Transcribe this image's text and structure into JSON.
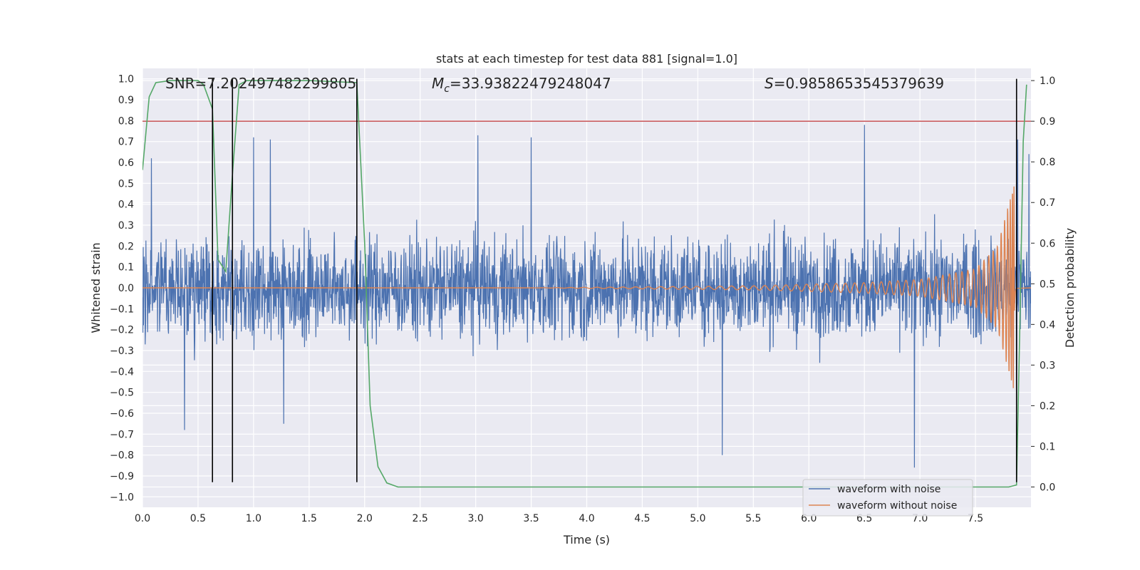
{
  "chart_data": {
    "type": "line",
    "title": "stats at each timestep for test data 881 [signal=1.0]",
    "xlabel": "Time (s)",
    "ylabel": "Whitened strain",
    "ylabel_right": "Detection probability",
    "xlim": [
      0.0,
      8.0
    ],
    "ylim": [
      -1.05,
      1.05
    ],
    "ylim_right": [
      -0.05,
      1.03
    ],
    "x_ticks": [
      "0.0",
      "0.5",
      "1.0",
      "1.5",
      "2.0",
      "2.5",
      "3.0",
      "3.5",
      "4.0",
      "4.5",
      "5.0",
      "5.5",
      "6.0",
      "6.5",
      "7.0",
      "7.5"
    ],
    "y_ticks": [
      "1.0",
      "0.9",
      "0.8",
      "0.7",
      "0.6",
      "0.5",
      "0.4",
      "0.3",
      "0.2",
      "0.1",
      "0.0",
      "−0.1",
      "−0.2",
      "−0.3",
      "−0.4",
      "−0.5",
      "−0.6",
      "−0.7",
      "−0.8",
      "−0.9",
      "−1.0"
    ],
    "y_right_ticks": [
      "1.0",
      "0.9",
      "0.8",
      "0.7",
      "0.6",
      "0.5",
      "0.4",
      "0.3",
      "0.2",
      "0.1",
      "0.0"
    ],
    "grid": true,
    "legend_position": "bottom-right",
    "annotations": {
      "snr": "SNR=7.202497482299805",
      "mc_symbol": "M",
      "mc_sub": "c",
      "mc_value": "=33.93822479248047",
      "s_symbol": "S",
      "s_value": "=0.9858653545379639"
    },
    "series": [
      {
        "name": "waveform with noise",
        "color": "#4c72b0",
        "description_x_range": [
          0.0,
          8.0
        ],
        "typical_envelope": [
          -0.35,
          0.35
        ],
        "peak_values": [
          {
            "x": 0.08,
            "y": 0.62
          },
          {
            "x": 1.0,
            "y": 0.72
          },
          {
            "x": 1.15,
            "y": 0.71
          },
          {
            "x": 3.02,
            "y": 0.73
          },
          {
            "x": 3.5,
            "y": 0.72
          },
          {
            "x": 6.5,
            "y": 0.78
          },
          {
            "x": 7.88,
            "y": 0.71
          },
          {
            "x": 7.98,
            "y": 0.64
          },
          {
            "x": 0.38,
            "y": -0.68
          },
          {
            "x": 1.27,
            "y": -0.65
          },
          {
            "x": 5.22,
            "y": -0.8
          },
          {
            "x": 6.95,
            "y": -0.86
          },
          {
            "x": 7.87,
            "y": -0.75
          }
        ]
      },
      {
        "name": "waveform without noise",
        "color": "#dd8452",
        "chirp_start_x": 3.5,
        "merger_x": 7.85,
        "peak_amplitude": 0.5,
        "envelope": [
          {
            "x": 3.5,
            "amp": 0.0
          },
          {
            "x": 4.5,
            "amp": 0.005
          },
          {
            "x": 5.5,
            "amp": 0.01
          },
          {
            "x": 6.5,
            "amp": 0.025
          },
          {
            "x": 7.0,
            "amp": 0.04
          },
          {
            "x": 7.5,
            "amp": 0.09
          },
          {
            "x": 7.7,
            "amp": 0.2
          },
          {
            "x": 7.85,
            "amp": 0.5
          }
        ]
      },
      {
        "name": "detection probability",
        "color": "#55a868",
        "axis": "right",
        "x": [
          0.0,
          0.06,
          0.12,
          0.25,
          0.5,
          0.55,
          0.63,
          0.68,
          0.75,
          0.81,
          0.87,
          0.94,
          1.5,
          1.93,
          2.0,
          2.05,
          2.12,
          2.2,
          2.3,
          7.0,
          7.8,
          7.87,
          7.9,
          7.93,
          7.96
        ],
        "y": [
          0.78,
          0.96,
          0.995,
          1.0,
          1.0,
          0.99,
          0.93,
          0.56,
          0.53,
          0.77,
          0.99,
          1.0,
          1.0,
          0.995,
          0.6,
          0.2,
          0.05,
          0.01,
          0.0,
          0.0,
          0.0,
          0.005,
          0.4,
          0.85,
          0.99
        ]
      }
    ],
    "threshold_line": {
      "axis": "right",
      "y": 0.9,
      "color": "#c44e52"
    },
    "vertical_lines": {
      "x": [
        0.63,
        0.81,
        1.93,
        7.87
      ],
      "ymin_left": -0.93,
      "ymax_left": 1.0,
      "color": "#000000"
    }
  }
}
